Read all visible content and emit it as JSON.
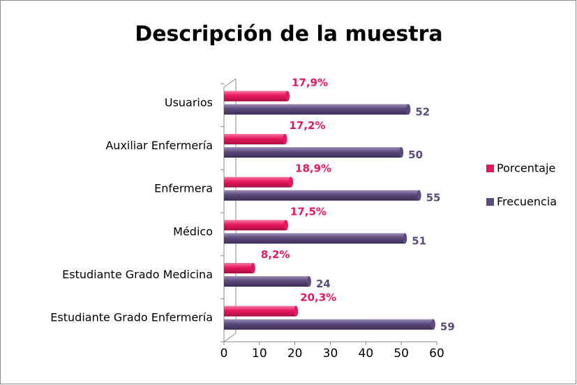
{
  "chart_data": {
    "type": "bar",
    "orientation": "horizontal",
    "title": "Descripción de la muestra",
    "categories": [
      "Usuarios",
      "Auxiliar Enfermería",
      "Enfermera",
      "Médico",
      "Estudiante Grado Medicina",
      "Estudiante Grado Enfermería"
    ],
    "series": [
      {
        "name": "Porcentaje",
        "color": "#e8175d",
        "values": [
          17.9,
          17.2,
          18.9,
          17.5,
          8.2,
          20.3
        ],
        "value_labels": [
          "17,9%",
          "17,2%",
          "18,9%",
          "17,5%",
          "8,2%",
          "20,3%"
        ]
      },
      {
        "name": "Frecuencia",
        "color": "#5b4a7c",
        "values": [
          52,
          50,
          55,
          51,
          24,
          59
        ]
      }
    ],
    "xlim": [
      0,
      60
    ],
    "xticks": [
      0,
      10,
      20,
      30,
      40,
      50,
      60
    ],
    "legend": "right"
  }
}
